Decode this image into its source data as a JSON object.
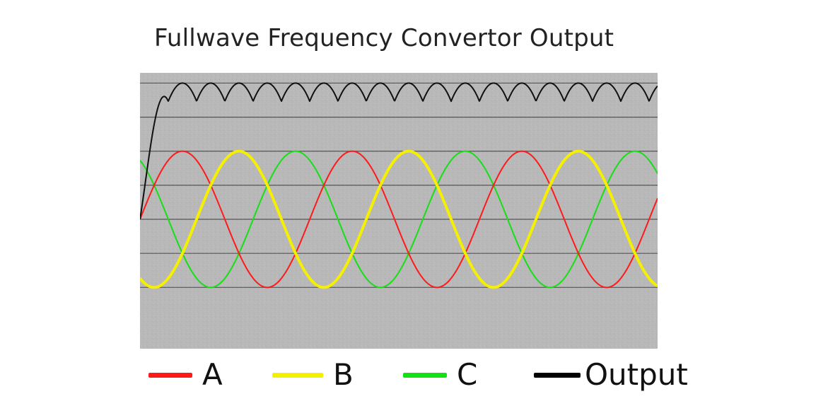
{
  "chart_data": {
    "type": "line",
    "title": "Fullwave Frequency Convertor Output",
    "xlabel": "",
    "ylabel": "",
    "grid": true,
    "legend_placement": "bottom",
    "cycles_shown": 3.05,
    "xlim": [
      0,
      1
    ],
    "ylim": [
      -1.9,
      2.15
    ],
    "gridlines_y": [
      -1,
      -0.5,
      0,
      0.5,
      1,
      1.5,
      2
    ],
    "series": [
      {
        "name": "A",
        "color": "#ff1a1a",
        "function": "sin",
        "phase_deg": 0,
        "amplitude": 1
      },
      {
        "name": "B",
        "color": "#f5f000",
        "function": "sin",
        "phase_deg": -120,
        "amplitude": 1
      },
      {
        "name": "C",
        "color": "#14e014",
        "function": "sin",
        "phase_deg": 120,
        "amplitude": 1
      },
      {
        "name": "Output",
        "color": "#111111",
        "function": "fullwave_max_abs_phases",
        "scale": 2,
        "ramp_up_fraction_of_cycle": 0.17
      }
    ]
  },
  "legend": [
    {
      "label": "A",
      "color": "#ff1a1a"
    },
    {
      "label": "B",
      "color": "#f5f000"
    },
    {
      "label": "C",
      "color": "#14e014"
    },
    {
      "label": "Output",
      "color": "#000000"
    }
  ],
  "colors": {
    "plot_background": "#b9b9b9",
    "gridline": "#555555",
    "page_background": "#ffffff"
  }
}
